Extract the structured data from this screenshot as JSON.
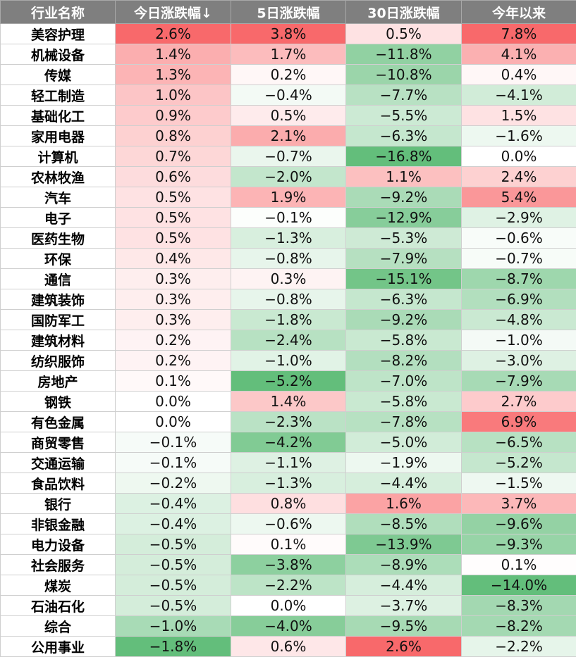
{
  "chart_data": {
    "type": "table",
    "columns": [
      "行业名称",
      "今日涨跌幅↓",
      "5日涨跌幅",
      "30日涨跌幅",
      "今年以来"
    ],
    "rows": [
      [
        "美容护理",
        "2.6%",
        "3.8%",
        "0.5%",
        "7.8%"
      ],
      [
        "机械设备",
        "1.4%",
        "1.7%",
        "−11.8%",
        "4.1%"
      ],
      [
        "传媒",
        "1.3%",
        "0.2%",
        "−10.8%",
        "0.4%"
      ],
      [
        "轻工制造",
        "1.0%",
        "−0.4%",
        "−7.7%",
        "−4.1%"
      ],
      [
        "基础化工",
        "0.9%",
        "0.5%",
        "−5.5%",
        "1.5%"
      ],
      [
        "家用电器",
        "0.8%",
        "2.1%",
        "−6.3%",
        "−1.6%"
      ],
      [
        "计算机",
        "0.7%",
        "−0.7%",
        "−16.8%",
        "0.0%"
      ],
      [
        "农林牧渔",
        "0.6%",
        "−2.0%",
        "1.1%",
        "2.4%"
      ],
      [
        "汽车",
        "0.5%",
        "1.9%",
        "−9.2%",
        "5.4%"
      ],
      [
        "电子",
        "0.5%",
        "−0.1%",
        "−12.9%",
        "−2.9%"
      ],
      [
        "医药生物",
        "0.5%",
        "−1.3%",
        "−5.3%",
        "−0.6%"
      ],
      [
        "环保",
        "0.4%",
        "−0.8%",
        "−7.9%",
        "−0.7%"
      ],
      [
        "通信",
        "0.3%",
        "0.3%",
        "−15.1%",
        "−8.7%"
      ],
      [
        "建筑装饰",
        "0.3%",
        "−0.8%",
        "−6.3%",
        "−6.9%"
      ],
      [
        "国防军工",
        "0.3%",
        "−1.8%",
        "−9.2%",
        "−4.8%"
      ],
      [
        "建筑材料",
        "0.2%",
        "−2.4%",
        "−5.8%",
        "−1.0%"
      ],
      [
        "纺织服饰",
        "0.2%",
        "−1.0%",
        "−8.2%",
        "−3.0%"
      ],
      [
        "房地产",
        "0.1%",
        "−5.2%",
        "−7.0%",
        "−7.9%"
      ],
      [
        "钢铁",
        "0.0%",
        "1.4%",
        "−5.8%",
        "2.7%"
      ],
      [
        "有色金属",
        "0.0%",
        "−2.3%",
        "−7.8%",
        "6.9%"
      ],
      [
        "商贸零售",
        "−0.1%",
        "−4.2%",
        "−5.0%",
        "−6.5%"
      ],
      [
        "交通运输",
        "−0.1%",
        "−1.1%",
        "−1.9%",
        "−5.2%"
      ],
      [
        "食品饮料",
        "−0.2%",
        "−1.3%",
        "−4.4%",
        "−1.5%"
      ],
      [
        "银行",
        "−0.4%",
        "0.8%",
        "1.6%",
        "3.7%"
      ],
      [
        "非银金融",
        "−0.4%",
        "−0.6%",
        "−8.5%",
        "−9.6%"
      ],
      [
        "电力设备",
        "−0.5%",
        "0.1%",
        "−13.9%",
        "−9.3%"
      ],
      [
        "社会服务",
        "−0.5%",
        "−3.8%",
        "−8.9%",
        "0.1%"
      ],
      [
        "煤炭",
        "−0.5%",
        "−2.2%",
        "−4.4%",
        "−14.0%"
      ],
      [
        "石油石化",
        "−0.5%",
        "0.0%",
        "−3.7%",
        "−8.3%"
      ],
      [
        "综合",
        "−1.0%",
        "−4.0%",
        "−9.5%",
        "−8.2%"
      ],
      [
        "公用事业",
        "−1.8%",
        "0.6%",
        "2.6%",
        "−2.2%"
      ]
    ]
  },
  "colors": {
    "header_bg": "#7f7f7f",
    "header_text": "#ffffff",
    "positive_max": "#f8696b",
    "negative_max": "#63be7b",
    "neutral": "#ffffff"
  }
}
